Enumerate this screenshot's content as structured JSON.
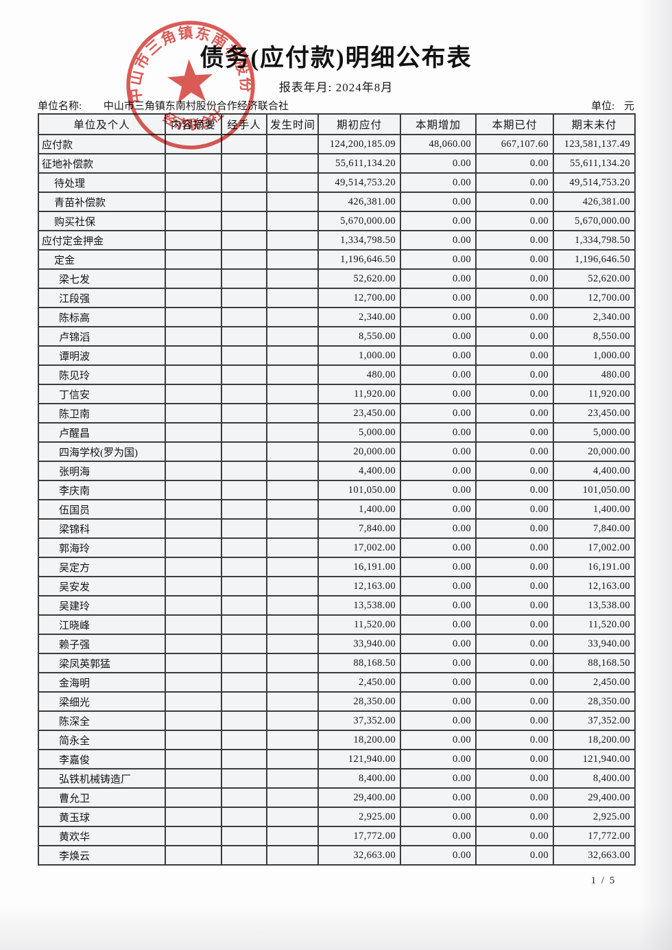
{
  "page": {
    "title": "债务(应付款)明细公布表",
    "report_month_label": "报表年月:",
    "report_month_value": "2024年8月",
    "unit_name_label": "单位名称:",
    "unit_name_value": "中山市三角镇东南村股份合作经济联合社",
    "currency_unit_label": "单位:",
    "currency_unit_value": "元",
    "page_number": "1 / 5"
  },
  "seal": {
    "top_text": "中山市三角镇东南村股份合作",
    "bottom_text": "经济联合社",
    "color": "#d8453f"
  },
  "table": {
    "columns": [
      "单位及个人",
      "内容摘要",
      "经手人",
      "发生时间",
      "期初应付",
      "本期增加",
      "本期已付",
      "期末未付"
    ],
    "rows": [
      {
        "label": "应付款",
        "indent": 0,
        "opening": "124,200,185.09",
        "increase": "48,060.00",
        "paid": "667,107.60",
        "closing": "123,581,137.49"
      },
      {
        "label": "征地补偿款",
        "indent": 0,
        "opening": "55,611,134.20",
        "increase": "0.00",
        "paid": "0.00",
        "closing": "55,611,134.20"
      },
      {
        "label": "待处理",
        "indent": 1,
        "opening": "49,514,753.20",
        "increase": "0.00",
        "paid": "0.00",
        "closing": "49,514,753.20"
      },
      {
        "label": "青苗补偿款",
        "indent": 1,
        "opening": "426,381.00",
        "increase": "0.00",
        "paid": "0.00",
        "closing": "426,381.00"
      },
      {
        "label": "购买社保",
        "indent": 1,
        "opening": "5,670,000.00",
        "increase": "0.00",
        "paid": "0.00",
        "closing": "5,670,000.00"
      },
      {
        "label": "应付定金押金",
        "indent": 0,
        "opening": "1,334,798.50",
        "increase": "0.00",
        "paid": "0.00",
        "closing": "1,334,798.50"
      },
      {
        "label": "定金",
        "indent": 1,
        "opening": "1,196,646.50",
        "increase": "0.00",
        "paid": "0.00",
        "closing": "1,196,646.50"
      },
      {
        "label": "梁七发",
        "indent": 2,
        "opening": "52,620.00",
        "increase": "0.00",
        "paid": "0.00",
        "closing": "52,620.00"
      },
      {
        "label": "江段强",
        "indent": 2,
        "opening": "12,700.00",
        "increase": "0.00",
        "paid": "0.00",
        "closing": "12,700.00"
      },
      {
        "label": "陈标高",
        "indent": 2,
        "opening": "2,340.00",
        "increase": "0.00",
        "paid": "0.00",
        "closing": "2,340.00"
      },
      {
        "label": "卢锦滔",
        "indent": 2,
        "opening": "8,550.00",
        "increase": "0.00",
        "paid": "0.00",
        "closing": "8,550.00"
      },
      {
        "label": "谭明波",
        "indent": 2,
        "opening": "1,000.00",
        "increase": "0.00",
        "paid": "0.00",
        "closing": "1,000.00"
      },
      {
        "label": "陈见玲",
        "indent": 2,
        "opening": "480.00",
        "increase": "0.00",
        "paid": "0.00",
        "closing": "480.00"
      },
      {
        "label": "丁信安",
        "indent": 2,
        "opening": "11,920.00",
        "increase": "0.00",
        "paid": "0.00",
        "closing": "11,920.00"
      },
      {
        "label": "陈卫南",
        "indent": 2,
        "opening": "23,450.00",
        "increase": "0.00",
        "paid": "0.00",
        "closing": "23,450.00"
      },
      {
        "label": "卢醒昌",
        "indent": 2,
        "opening": "5,000.00",
        "increase": "0.00",
        "paid": "0.00",
        "closing": "5,000.00"
      },
      {
        "label": "四海学校(罗为国)",
        "indent": 2,
        "opening": "20,000.00",
        "increase": "0.00",
        "paid": "0.00",
        "closing": "20,000.00"
      },
      {
        "label": "张明海",
        "indent": 2,
        "opening": "4,400.00",
        "increase": "0.00",
        "paid": "0.00",
        "closing": "4,400.00"
      },
      {
        "label": "李庆南",
        "indent": 2,
        "opening": "101,050.00",
        "increase": "0.00",
        "paid": "0.00",
        "closing": "101,050.00"
      },
      {
        "label": "伍国员",
        "indent": 2,
        "opening": "1,400.00",
        "increase": "0.00",
        "paid": "0.00",
        "closing": "1,400.00"
      },
      {
        "label": "梁锦科",
        "indent": 2,
        "opening": "7,840.00",
        "increase": "0.00",
        "paid": "0.00",
        "closing": "7,840.00"
      },
      {
        "label": "郭海玲",
        "indent": 2,
        "opening": "17,002.00",
        "increase": "0.00",
        "paid": "0.00",
        "closing": "17,002.00"
      },
      {
        "label": "吴定方",
        "indent": 2,
        "opening": "16,191.00",
        "increase": "0.00",
        "paid": "0.00",
        "closing": "16,191.00"
      },
      {
        "label": "吴安发",
        "indent": 2,
        "opening": "12,163.00",
        "increase": "0.00",
        "paid": "0.00",
        "closing": "12,163.00"
      },
      {
        "label": "吴建玲",
        "indent": 2,
        "opening": "13,538.00",
        "increase": "0.00",
        "paid": "0.00",
        "closing": "13,538.00"
      },
      {
        "label": "江晓峰",
        "indent": 2,
        "opening": "11,520.00",
        "increase": "0.00",
        "paid": "0.00",
        "closing": "11,520.00"
      },
      {
        "label": "赖子强",
        "indent": 2,
        "opening": "33,940.00",
        "increase": "0.00",
        "paid": "0.00",
        "closing": "33,940.00"
      },
      {
        "label": "梁凤英郭猛",
        "indent": 2,
        "opening": "88,168.50",
        "increase": "0.00",
        "paid": "0.00",
        "closing": "88,168.50"
      },
      {
        "label": "金海明",
        "indent": 2,
        "opening": "2,450.00",
        "increase": "0.00",
        "paid": "0.00",
        "closing": "2,450.00"
      },
      {
        "label": "梁细光",
        "indent": 2,
        "opening": "28,350.00",
        "increase": "0.00",
        "paid": "0.00",
        "closing": "28,350.00"
      },
      {
        "label": "陈深全",
        "indent": 2,
        "opening": "37,352.00",
        "increase": "0.00",
        "paid": "0.00",
        "closing": "37,352.00"
      },
      {
        "label": "简永全",
        "indent": 2,
        "opening": "18,200.00",
        "increase": "0.00",
        "paid": "0.00",
        "closing": "18,200.00"
      },
      {
        "label": "李嘉俊",
        "indent": 2,
        "opening": "121,940.00",
        "increase": "0.00",
        "paid": "0.00",
        "closing": "121,940.00"
      },
      {
        "label": "弘铁机械铸造厂",
        "indent": 2,
        "opening": "8,400.00",
        "increase": "0.00",
        "paid": "0.00",
        "closing": "8,400.00"
      },
      {
        "label": "曹允卫",
        "indent": 2,
        "opening": "29,400.00",
        "increase": "0.00",
        "paid": "0.00",
        "closing": "29,400.00"
      },
      {
        "label": "黄玉球",
        "indent": 2,
        "opening": "2,925.00",
        "increase": "0.00",
        "paid": "0.00",
        "closing": "2,925.00"
      },
      {
        "label": "黄欢华",
        "indent": 2,
        "opening": "17,772.00",
        "increase": "0.00",
        "paid": "0.00",
        "closing": "17,772.00"
      },
      {
        "label": "李焕云",
        "indent": 2,
        "opening": "32,663.00",
        "increase": "0.00",
        "paid": "0.00",
        "closing": "32,663.00"
      }
    ]
  }
}
